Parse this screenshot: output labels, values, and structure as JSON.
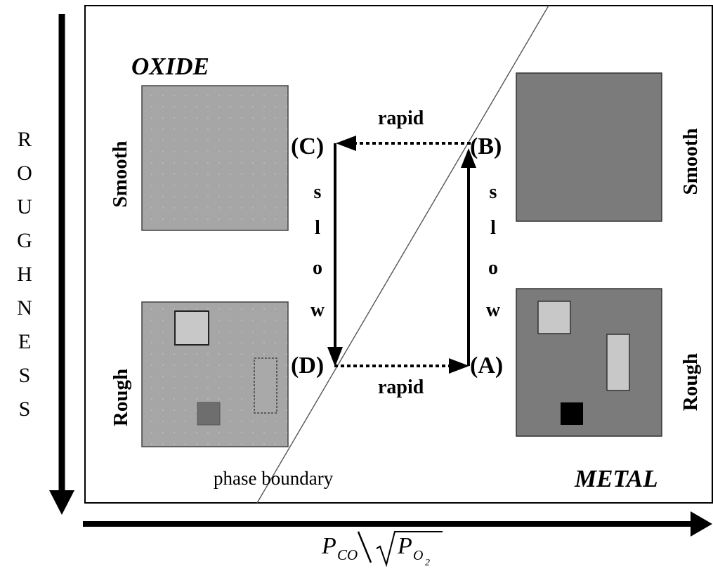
{
  "y_axis": {
    "label_letters": [
      "R",
      "O",
      "U",
      "G",
      "H",
      "N",
      "E",
      "S",
      "S"
    ]
  },
  "x_axis": {
    "label": {
      "p": "P",
      "co": "CO",
      "o": "O",
      "two": "2"
    }
  },
  "regions": {
    "oxide": "OXIDE",
    "metal": "METAL"
  },
  "phase_boundary_label": "phase boundary",
  "side_labels": {
    "oxide_smooth": "Smooth",
    "oxide_rough": "Rough",
    "metal_smooth": "Smooth",
    "metal_rough": "Rough"
  },
  "points": {
    "a": "(A)",
    "b": "(B)",
    "c": "(C)",
    "d": "(D)"
  },
  "transitions": {
    "rapid_top": "rapid",
    "rapid_bottom": "rapid",
    "slow_left": [
      "s",
      "l",
      "o",
      "w"
    ],
    "slow_right": [
      "s",
      "l",
      "o",
      "w"
    ]
  },
  "colors": {
    "oxide_fill": "#a6a6a6",
    "metal_fill": "#7b7b7b",
    "light_patch": "#c8c8c8",
    "dark_patch": "#6e6e6e",
    "black_patch": "#000000",
    "stroke": "#000000"
  }
}
